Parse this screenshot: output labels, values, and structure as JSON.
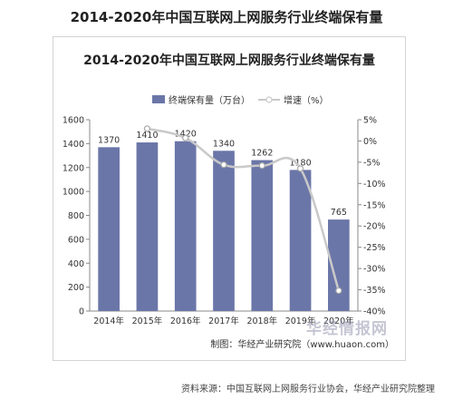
{
  "page_title": "2014-2020年中国互联网上网服务行业终端保有量",
  "watermark": "华经情报网",
  "source_note": "资料来源：中国互联网上网服务行业协会，华经产业研究院整理",
  "colors": {
    "bar": "#6b76a8",
    "line": "#c9c9c9",
    "marker": "#ffffff",
    "axis": "#888888"
  },
  "chart_data": {
    "type": "bar",
    "title": "2014-2020年中国互联网上网服务行业终端保有量",
    "categories": [
      "2014年",
      "2015年",
      "2016年",
      "2017年",
      "2018年",
      "2019年",
      "2020年"
    ],
    "series": [
      {
        "name": "终端保有量（万台）",
        "type": "bar",
        "axis": "left",
        "values": [
          1370,
          1410,
          1420,
          1340,
          1262,
          1180,
          765
        ],
        "labels": [
          "1370",
          "1410",
          "1420",
          "1340",
          "1262",
          "1180",
          "765"
        ]
      },
      {
        "name": "增速（%）",
        "type": "line",
        "axis": "right",
        "values": [
          null,
          2.9,
          0.7,
          -5.6,
          -5.8,
          -6.5,
          -35.2
        ]
      }
    ],
    "ylim": [
      0,
      1600
    ],
    "yticks": [
      "1600",
      "1400",
      "1200",
      "1000",
      "800",
      "600",
      "400",
      "200",
      "0"
    ],
    "y2lim": [
      -40,
      5
    ],
    "y2ticks": [
      "5%",
      "0%",
      "-5%",
      "-10%",
      "-15%",
      "-20%",
      "-25%",
      "-30%",
      "-35%",
      "-40%"
    ],
    "legend_position": "top-center",
    "grid": false,
    "credit": "制图：华经产业研究院（www.huaon.com）"
  }
}
